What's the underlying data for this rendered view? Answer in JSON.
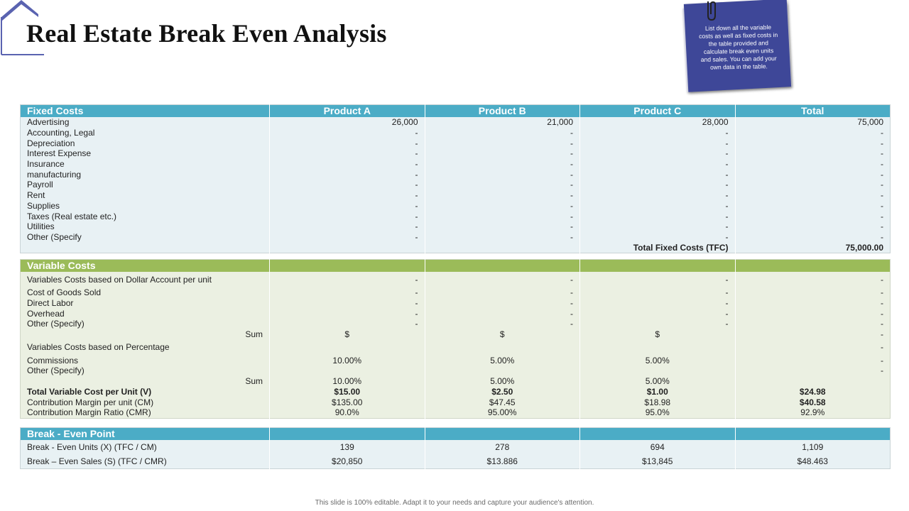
{
  "title": "Real Estate Break Even Analysis",
  "note": "List down all the variable costs as well as fixed costs in the table provided and calculate break even units and sales. You can add your own data in the table.",
  "footer": "This slide is 100% editable. Adapt it to your needs and capture your audience's attention.",
  "colors": {
    "fixed_header": "#4bacc6",
    "variable_header": "#9bbb59",
    "note": "#3e4798"
  },
  "fixed": {
    "headers": [
      "Fixed Costs",
      "Product A",
      "Product B",
      "Product C",
      "Total"
    ],
    "rows": [
      [
        "Advertising",
        "26,000",
        "21,000",
        "28,000",
        "75,000"
      ],
      [
        "Accounting, Legal",
        "-",
        "-",
        "-",
        "-"
      ],
      [
        "Depreciation",
        "-",
        "-",
        "-",
        "-"
      ],
      [
        "Interest Expense",
        "-",
        "-",
        "-",
        "-"
      ],
      [
        "Insurance",
        "-",
        "-",
        "-",
        "-"
      ],
      [
        "manufacturing",
        "-",
        "-",
        "-",
        "-"
      ],
      [
        "Payroll",
        "-",
        "-",
        "-",
        "-"
      ],
      [
        "Rent",
        "-",
        "-",
        "-",
        "-"
      ],
      [
        "Supplies",
        "-",
        "-",
        "-",
        "-"
      ],
      [
        "Taxes (Real estate etc.)",
        "-",
        "-",
        "-",
        "-"
      ],
      [
        "Utilities",
        "-",
        "-",
        "-",
        "-"
      ],
      [
        "Other (Specify",
        "-",
        "-",
        "-",
        "-"
      ]
    ],
    "total_label": "Total Fixed Costs (TFC)",
    "total_value": "75,000.00"
  },
  "variable": {
    "header": "Variable Costs",
    "rows": [
      [
        "Variables Costs based on Dollar Account per unit",
        "-",
        "-",
        "-",
        "-"
      ],
      [
        "Cost of Goods Sold",
        "-",
        "-",
        "-",
        "-"
      ],
      [
        "Direct Labor",
        "-",
        "-",
        "-",
        "-"
      ],
      [
        "Overhead",
        "-",
        "-",
        "-",
        "-"
      ],
      [
        "Other (Specify)",
        "-",
        "-",
        "-",
        "-"
      ],
      [
        "Sum",
        "$",
        "$",
        "$",
        "-"
      ],
      [
        "Variables Costs based on Percentage",
        "",
        "",
        "",
        "-"
      ],
      [
        "Commissions",
        "10.00%",
        "5.00%",
        "5.00%",
        "-"
      ],
      [
        "Other (Specify)",
        "",
        "",
        "",
        "-"
      ],
      [
        "Sum",
        "10.00%",
        "5.00%",
        "5.00%",
        ""
      ],
      [
        "Total Variable Cost per Unit (V)",
        "$15.00",
        "$2.50",
        "$1.00",
        "$24.98"
      ],
      [
        "Contribution Margin per unit (CM)",
        "$135.00",
        "$47.45",
        "$18.98",
        "$40.58"
      ],
      [
        "Contribution Margin Ratio (CMR)",
        "90.0%",
        "95.00%",
        "95.0%",
        "92.9%"
      ]
    ]
  },
  "breakeven": {
    "header": "Break - Even Point",
    "rows": [
      [
        "Break - Even Units (X) (TFC / CM)",
        "139",
        "278",
        "694",
        "1,109"
      ],
      [
        "Break – Even Sales (S) (TFC / CMR)",
        "$20,850",
        "$13.886",
        "$13,845",
        "$48.463"
      ]
    ]
  }
}
